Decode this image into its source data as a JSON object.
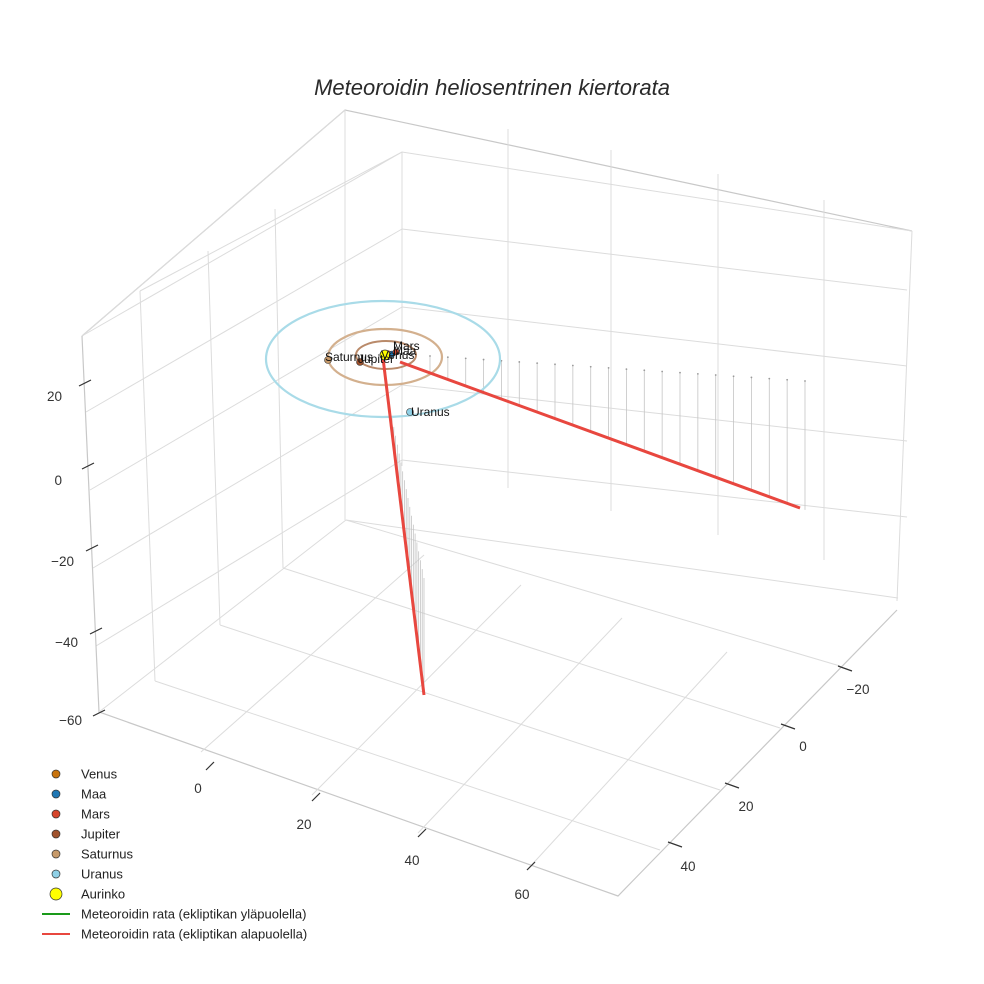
{
  "chart_data": {
    "type": "scatter3d",
    "title": "Meteoroidin heliosentrinen kiertorata",
    "axes": {
      "x": {
        "ticks": [
          "0",
          "20",
          "40",
          "60"
        ]
      },
      "y": {
        "ticks": [
          "−20",
          "0",
          "20",
          "40"
        ]
      },
      "z": {
        "ticks": [
          "20",
          "0",
          "−20",
          "−40",
          "−60"
        ]
      }
    },
    "bodies": [
      {
        "name": "Venus",
        "label": "Venus",
        "color": "#c8730d",
        "orbit_radius_au": 0.72
      },
      {
        "name": "Maa",
        "label": "Maa",
        "color": "#1f77b4",
        "orbit_radius_au": 1.0
      },
      {
        "name": "Mars",
        "label": "Mars",
        "color": "#d6452b",
        "orbit_radius_au": 1.52
      },
      {
        "name": "Jupiter",
        "label": "Jupiter",
        "color": "#a0522d",
        "orbit_radius_au": 5.2
      },
      {
        "name": "Saturnus",
        "label": "Saturnus",
        "color": "#c79a6a",
        "orbit_radius_au": 9.5
      },
      {
        "name": "Uranus",
        "label": "Uranus",
        "color": "#8fd0e6",
        "orbit_radius_au": 19.2
      },
      {
        "name": "Aurinko",
        "label": "Aurinko",
        "color": "#ffff00",
        "orbit_radius_au": 0
      }
    ],
    "meteoroid_series": [
      {
        "name": "Meteoroidin rata (ekliptikan yläpuolella)",
        "color": "#1a9a1a"
      },
      {
        "name": "Meteoroidin rata (ekliptikan alapuolella)",
        "color": "#e8473f"
      }
    ],
    "legend": [
      {
        "label": "Venus",
        "marker": "dot",
        "color": "#c8730d"
      },
      {
        "label": "Maa",
        "marker": "dot",
        "color": "#1f77b4"
      },
      {
        "label": "Mars",
        "marker": "dot",
        "color": "#d6452b"
      },
      {
        "label": "Jupiter",
        "marker": "dot",
        "color": "#a0522d"
      },
      {
        "label": "Saturnus",
        "marker": "dot",
        "color": "#c79a6a"
      },
      {
        "label": "Uranus",
        "marker": "dot",
        "color": "#8fd0e6"
      },
      {
        "label": "Aurinko",
        "marker": "sun",
        "color": "#ffff00"
      },
      {
        "label": "Meteoroidin rata (ekliptikan yläpuolella)",
        "marker": "line",
        "color": "#1a9a1a"
      },
      {
        "label": "Meteoroidin rata (ekliptikan alapuolella)",
        "marker": "line",
        "color": "#e8473f"
      }
    ]
  }
}
